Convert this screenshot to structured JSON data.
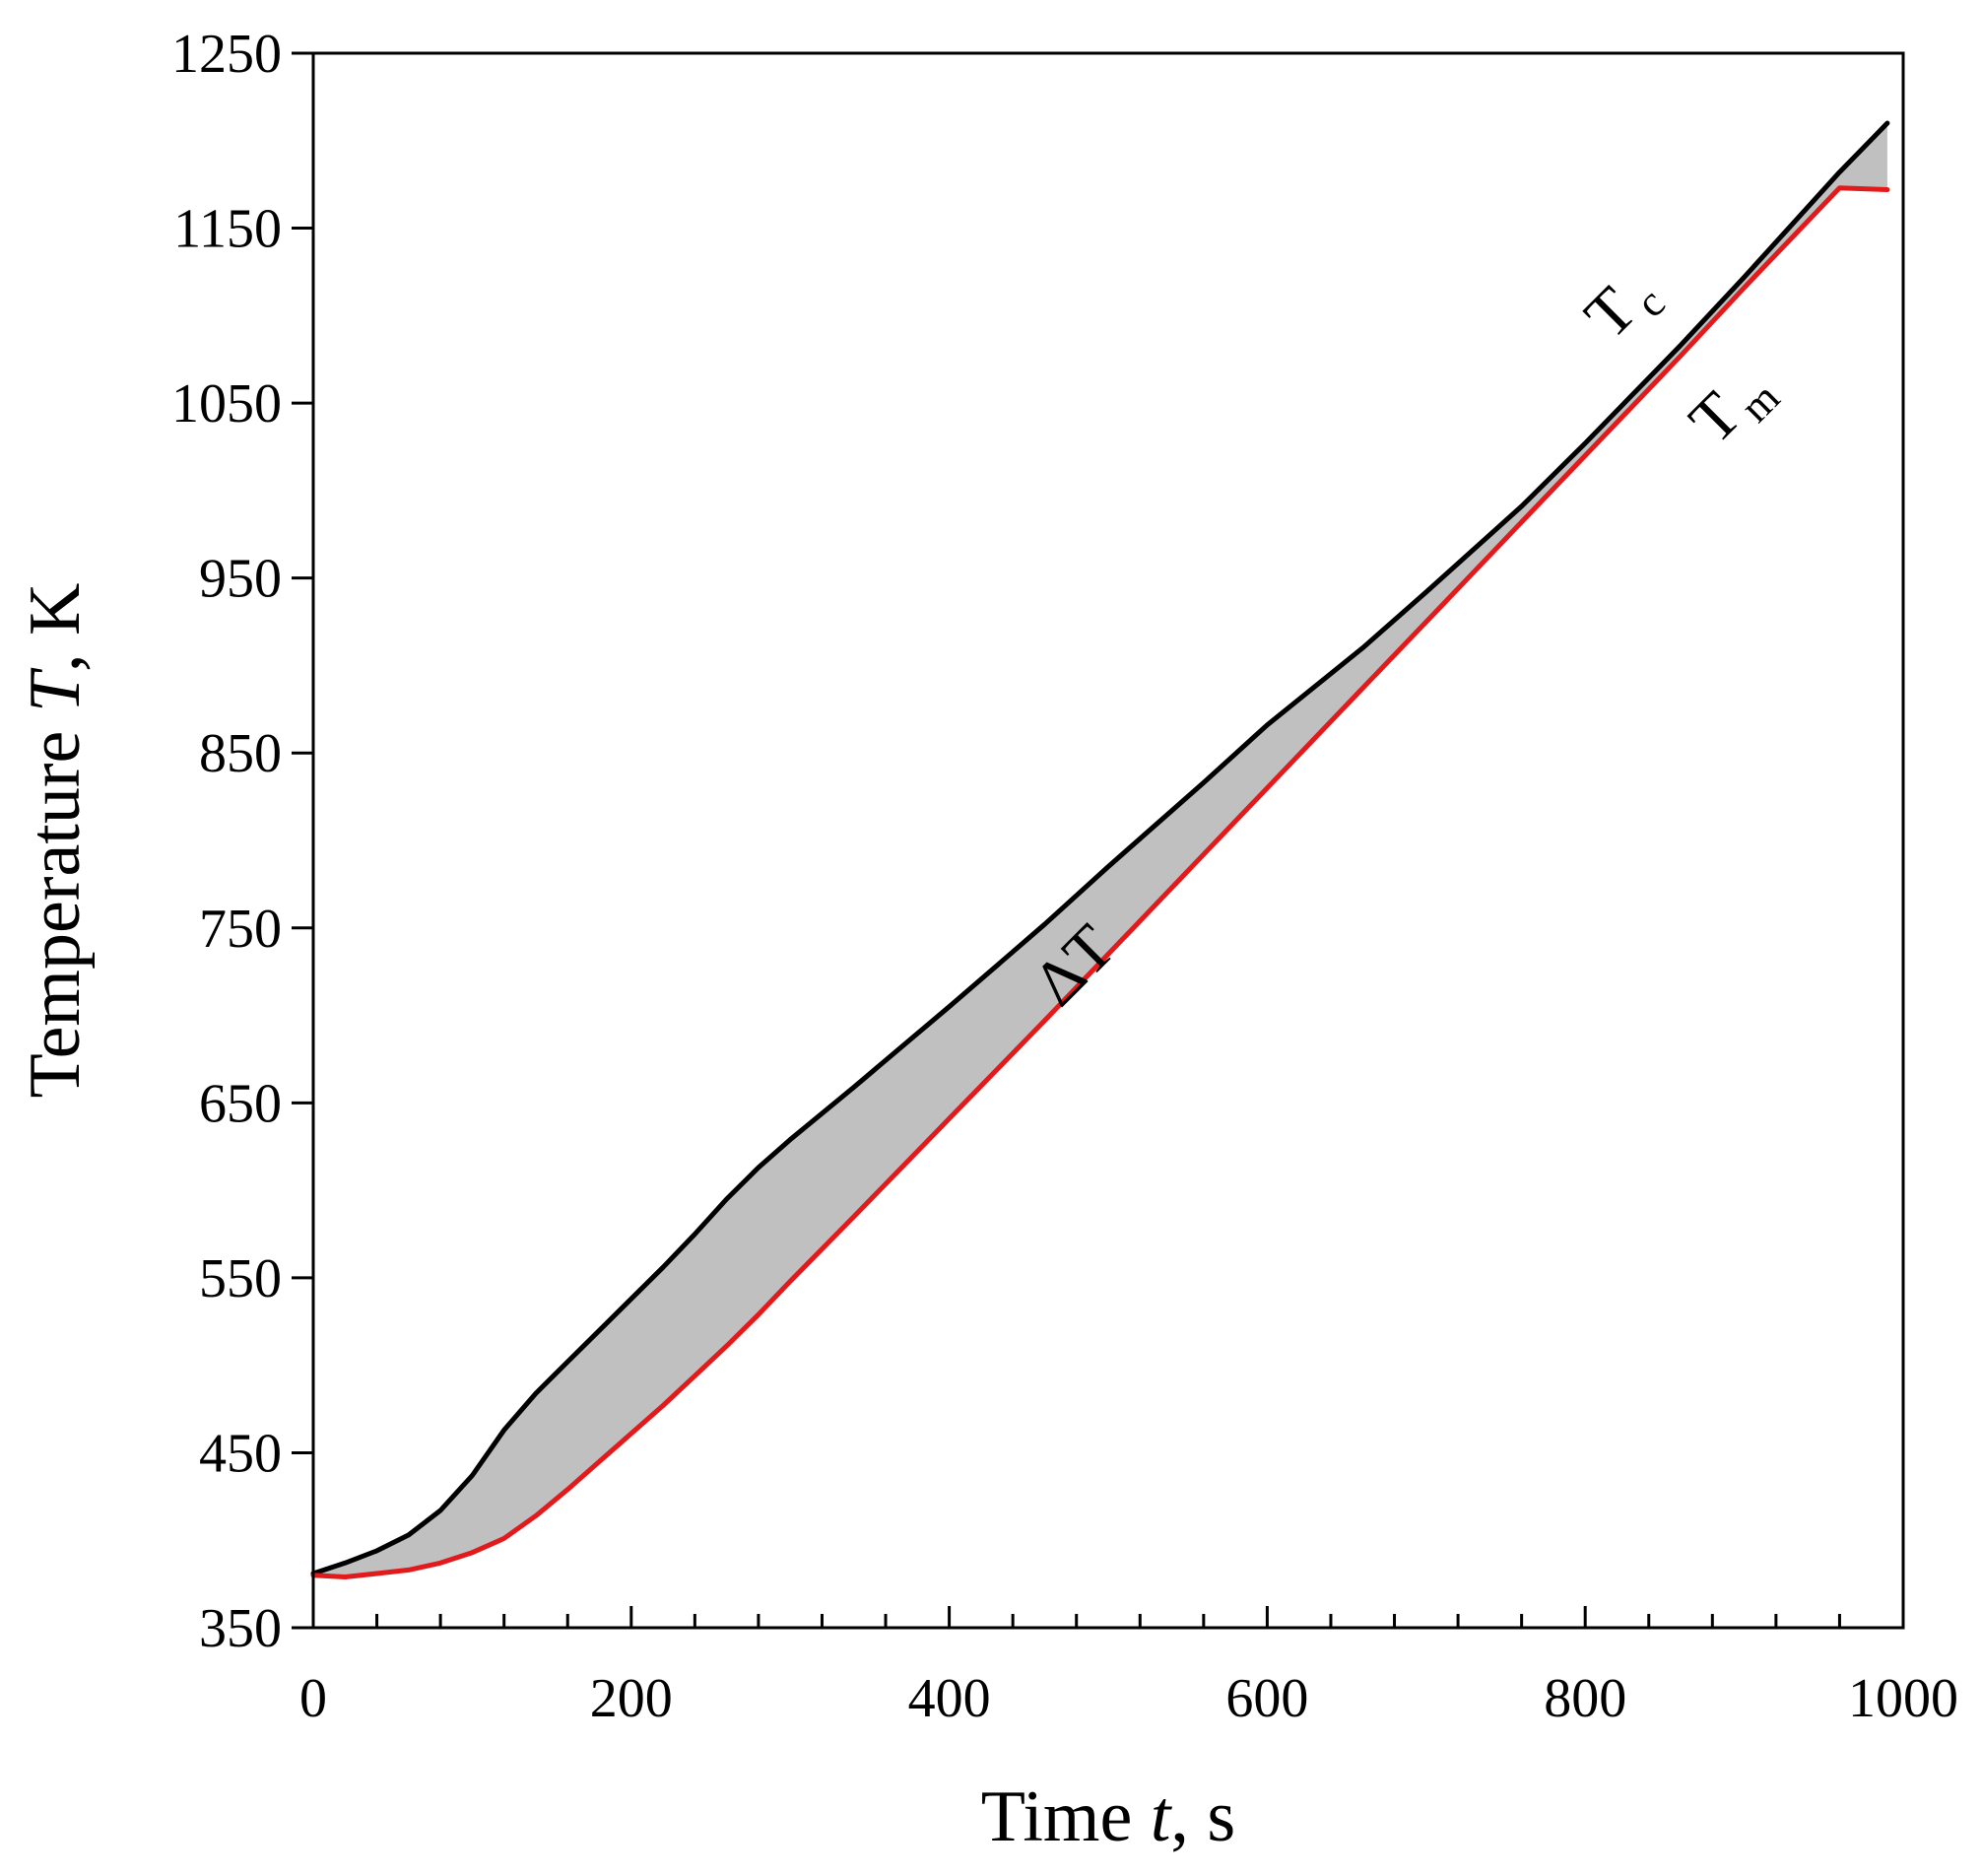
{
  "chart_data": {
    "type": "area",
    "title": "",
    "xlabel_parts": [
      "Time ",
      "t",
      ", s"
    ],
    "ylabel_parts": [
      "Temperature ",
      "T",
      ", K"
    ],
    "xlim": [
      0,
      1000
    ],
    "ylim": [
      350,
      1250
    ],
    "x_ticks": [
      0,
      200,
      400,
      600,
      800,
      1000
    ],
    "y_ticks": [
      350,
      450,
      550,
      650,
      750,
      850,
      950,
      1050,
      1150,
      1250
    ],
    "x_minor_step": 40,
    "grid": false,
    "legend": "none",
    "series": [
      {
        "label_main": "T",
        "label_sub": "c",
        "color": "#000000",
        "x": [
          0,
          20,
          40,
          60,
          80,
          100,
          120,
          140,
          160,
          180,
          200,
          220,
          240,
          260,
          280,
          300,
          340,
          400,
          460,
          500,
          560,
          600,
          660,
          700,
          760,
          800,
          860,
          900,
          960,
          990
        ],
        "y": [
          381,
          387,
          394,
          403,
          417,
          437,
          463,
          484,
          502,
          520,
          538,
          556,
          575,
          595,
          613,
          629,
          659,
          705,
          752,
          785,
          833,
          866,
          910,
          942,
          991,
          1027,
          1083,
          1122,
          1182,
          1210
        ]
      },
      {
        "label_main": "T",
        "label_sub": "m",
        "color": "#e31a1c",
        "x": [
          0,
          20,
          40,
          60,
          80,
          100,
          120,
          140,
          160,
          180,
          200,
          220,
          240,
          260,
          280,
          300,
          340,
          400,
          460,
          500,
          560,
          600,
          660,
          700,
          760,
          800,
          860,
          900,
          960,
          990
        ],
        "y": [
          380,
          379,
          381,
          383,
          387,
          393,
          401,
          414,
          429,
          445,
          461,
          477,
          494,
          511,
          529,
          548,
          585,
          641,
          697,
          735,
          792,
          830,
          887,
          925,
          982,
          1020,
          1077,
          1116,
          1173,
          1172
        ]
      }
    ],
    "fill_between": {
      "label": "ΔT",
      "color": "#c0c0c0"
    }
  }
}
